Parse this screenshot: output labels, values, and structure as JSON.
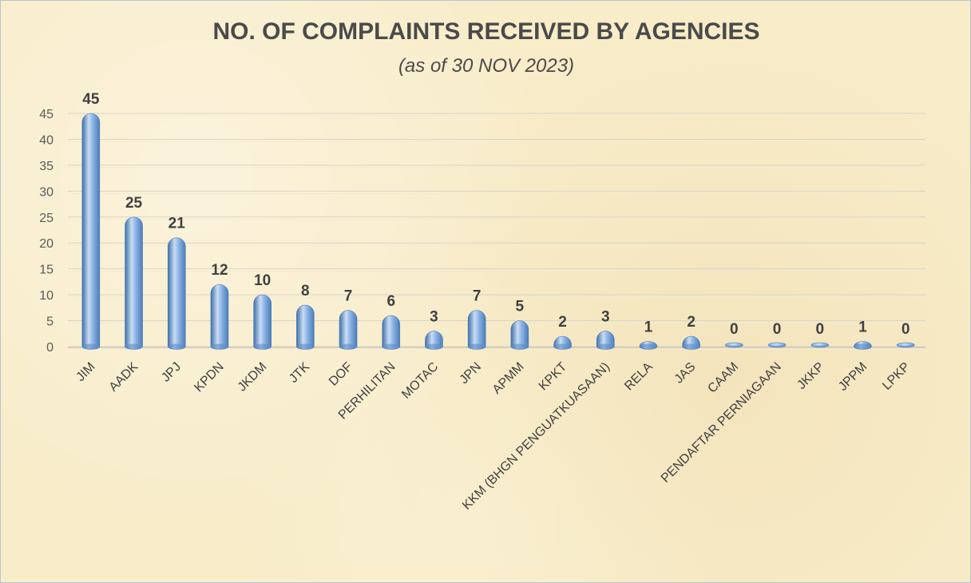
{
  "chart_data": {
    "type": "bar",
    "title": "NO. OF COMPLAINTS RECEIVED BY AGENCIES",
    "subtitle": "(as of 30 NOV 2023)",
    "xlabel": "",
    "ylabel": "",
    "ylim": [
      0,
      45
    ],
    "yticks": [
      0,
      5,
      10,
      15,
      20,
      25,
      30,
      35,
      40,
      45
    ],
    "grid": true,
    "legend": "none",
    "categories": [
      "JIM",
      "AADK",
      "JPJ",
      "KPDN",
      "JKDM",
      "JTK",
      "DOF",
      "PERHILITAN",
      "MOTAC",
      "JPN",
      "APMM",
      "KPKT",
      "KKM (BHGN PENGUATKUASAAN)",
      "RELA",
      "JAS",
      "CAAM",
      "PENDAFTAR PERNIAGAAN",
      "JKKP",
      "JPPM",
      "LPKP"
    ],
    "values": [
      45,
      25,
      21,
      12,
      10,
      8,
      7,
      6,
      3,
      7,
      5,
      2,
      3,
      1,
      2,
      0,
      0,
      0,
      1,
      0
    ],
    "colors": {
      "bar": "#6f9fd8",
      "bar_light": "#c9ddf3",
      "bar_dark": "#3f6fa8",
      "grid": "#d9d4c4"
    }
  }
}
